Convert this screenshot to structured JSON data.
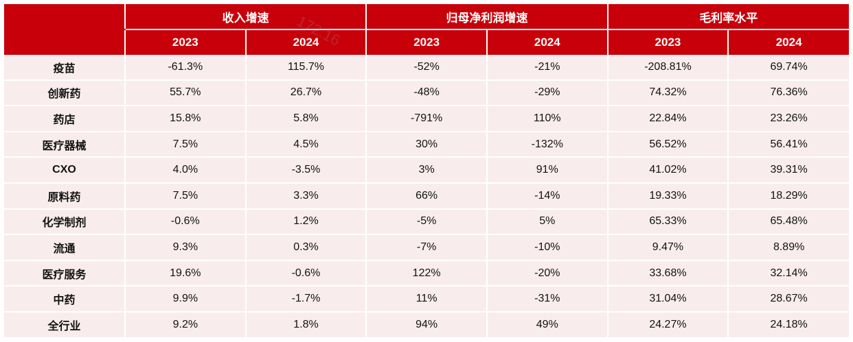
{
  "table": {
    "groups": [
      {
        "label": "收入增速",
        "years": [
          "2023",
          "2024"
        ]
      },
      {
        "label": "归母净利润增速",
        "years": [
          "2023",
          "2024"
        ]
      },
      {
        "label": "毛利率水平",
        "years": [
          "2023",
          "2024"
        ]
      }
    ],
    "rows": [
      {
        "name": "疫苗",
        "values": [
          "-61.3%",
          "115.7%",
          "-52%",
          "-21%",
          "-208.81%",
          "69.74%"
        ]
      },
      {
        "name": "创新药",
        "values": [
          "55.7%",
          "26.7%",
          "-48%",
          "-29%",
          "74.32%",
          "76.36%"
        ]
      },
      {
        "name": "药店",
        "values": [
          "15.8%",
          "5.8%",
          "-791%",
          "110%",
          "22.84%",
          "23.26%"
        ]
      },
      {
        "name": "医疗器械",
        "values": [
          "7.5%",
          "4.5%",
          "30%",
          "-132%",
          "56.52%",
          "56.41%"
        ]
      },
      {
        "name": "CXO",
        "values": [
          "4.0%",
          "-3.5%",
          "3%",
          "91%",
          "41.02%",
          "39.31%"
        ]
      },
      {
        "name": "原料药",
        "values": [
          "7.5%",
          "3.3%",
          "66%",
          "-14%",
          "19.33%",
          "18.29%"
        ]
      },
      {
        "name": "化学制剂",
        "values": [
          "-0.6%",
          "1.2%",
          "-5%",
          "5%",
          "65.33%",
          "65.48%"
        ]
      },
      {
        "name": "流通",
        "values": [
          "9.3%",
          "0.3%",
          "-7%",
          "-10%",
          "9.47%",
          "8.89%"
        ]
      },
      {
        "name": "医疗服务",
        "values": [
          "19.6%",
          "-0.6%",
          "122%",
          "-20%",
          "33.68%",
          "32.14%"
        ]
      },
      {
        "name": "中药",
        "values": [
          "9.9%",
          "-1.7%",
          "11%",
          "-31%",
          "31.04%",
          "28.67%"
        ]
      },
      {
        "name": "全行业",
        "values": [
          "9.2%",
          "1.8%",
          "94%",
          "49%",
          "24.27%",
          "24.18%"
        ]
      }
    ]
  },
  "colors": {
    "header_bg": "#c8000a",
    "header_text": "#ffffff",
    "body_bg": "#f8ecec"
  },
  "watermark": {
    "text": "172.16"
  }
}
